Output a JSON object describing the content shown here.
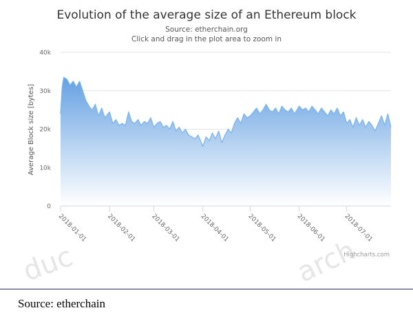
{
  "chart_data": {
    "type": "area",
    "title": "Evolution of the average size of an Ethereum block",
    "subtitle": "Source: etherchain.org",
    "subtitle2": "Click and drag in the plot area to zoom in",
    "xlabel": "",
    "ylabel": "Average Block size [bytes]",
    "credits": "Highcharts.com",
    "ylim": [
      0,
      40000
    ],
    "yticks": [
      0,
      10000,
      20000,
      30000,
      40000
    ],
    "ytick_labels": [
      "0",
      "10k",
      "20k",
      "30k",
      "40k"
    ],
    "xlim": [
      "2018-01-01",
      "2018-07-29"
    ],
    "xticks": [
      "2018-01-01",
      "2018-02-01",
      "2018-03-01",
      "2018-04-01",
      "2018-05-01",
      "2018-06-01",
      "2018-07-01"
    ],
    "xtick_labels": [
      "2018-01-01",
      "2018-02-01",
      "2018-03-01",
      "2018-04-01",
      "2018-05-01",
      "2018-06-01",
      "2018-07-01"
    ],
    "grid": true,
    "legend": "none",
    "colors": {
      "line": "#7cb5ec",
      "fill_top": "#5b9be0",
      "fill_bottom": "#ffffff",
      "grid": "#e6e6e6"
    },
    "series": [
      {
        "x": [
          "2018-01-01",
          "2018-01-02",
          "2018-01-03",
          "2018-01-05",
          "2018-01-07",
          "2018-01-09",
          "2018-01-11",
          "2018-01-13",
          "2018-01-15",
          "2018-01-17",
          "2018-01-19",
          "2018-01-21",
          "2018-01-23",
          "2018-01-25",
          "2018-01-27",
          "2018-01-29",
          "2018-02-01",
          "2018-02-03",
          "2018-02-05",
          "2018-02-07",
          "2018-02-09",
          "2018-02-11",
          "2018-02-13",
          "2018-02-15",
          "2018-02-17",
          "2018-02-19",
          "2018-02-21",
          "2018-02-23",
          "2018-02-25",
          "2018-02-27",
          "2018-03-01",
          "2018-03-03",
          "2018-03-05",
          "2018-03-07",
          "2018-03-09",
          "2018-03-11",
          "2018-03-13",
          "2018-03-15",
          "2018-03-17",
          "2018-03-19",
          "2018-03-21",
          "2018-03-23",
          "2018-03-25",
          "2018-03-27",
          "2018-03-29",
          "2018-04-01",
          "2018-04-03",
          "2018-04-05",
          "2018-04-07",
          "2018-04-09",
          "2018-04-11",
          "2018-04-13",
          "2018-04-15",
          "2018-04-17",
          "2018-04-19",
          "2018-04-21",
          "2018-04-23",
          "2018-04-25",
          "2018-04-27",
          "2018-04-29",
          "2018-05-01",
          "2018-05-03",
          "2018-05-05",
          "2018-05-07",
          "2018-05-09",
          "2018-05-11",
          "2018-05-13",
          "2018-05-15",
          "2018-05-17",
          "2018-05-19",
          "2018-05-21",
          "2018-05-23",
          "2018-05-25",
          "2018-05-27",
          "2018-05-29",
          "2018-06-01",
          "2018-06-03",
          "2018-06-05",
          "2018-06-07",
          "2018-06-09",
          "2018-06-11",
          "2018-06-13",
          "2018-06-15",
          "2018-06-17",
          "2018-06-19",
          "2018-06-21",
          "2018-06-23",
          "2018-06-25",
          "2018-06-27",
          "2018-06-29",
          "2018-07-01",
          "2018-07-03",
          "2018-07-05",
          "2018-07-07",
          "2018-07-09",
          "2018-07-11",
          "2018-07-13",
          "2018-07-15",
          "2018-07-17",
          "2018-07-19",
          "2018-07-21",
          "2018-07-23",
          "2018-07-25",
          "2018-07-27",
          "2018-07-29"
        ],
        "values": [
          24000,
          31000,
          33500,
          33000,
          31500,
          32500,
          31000,
          32500,
          30000,
          27500,
          26000,
          25000,
          26500,
          23500,
          25500,
          23000,
          24500,
          21500,
          22500,
          21000,
          21500,
          21000,
          24500,
          22000,
          21500,
          22500,
          21000,
          22000,
          21500,
          23000,
          20500,
          21500,
          22000,
          20500,
          21000,
          20000,
          22000,
          19500,
          20500,
          19000,
          20000,
          18500,
          18000,
          17500,
          18500,
          15500,
          18000,
          17000,
          19000,
          17500,
          19500,
          16500,
          18500,
          20000,
          19000,
          21500,
          23000,
          21500,
          24000,
          23000,
          23500,
          24500,
          25500,
          24000,
          25000,
          26500,
          25000,
          24500,
          25500,
          24000,
          26000,
          25000,
          24500,
          25500,
          24000,
          26000,
          25000,
          25500,
          24500,
          26000,
          25000,
          24000,
          25500,
          24500,
          23500,
          25000,
          24000,
          25500,
          23500,
          24500,
          21500,
          22500,
          20500,
          23000,
          21000,
          22500,
          20500,
          22000,
          21000,
          19500,
          21500,
          23500,
          21000,
          24000,
          20500
        ]
      }
    ]
  },
  "watermarks": [
    "duc",
    "arch"
  ],
  "caption": {
    "text": "Source: etherchain"
  }
}
